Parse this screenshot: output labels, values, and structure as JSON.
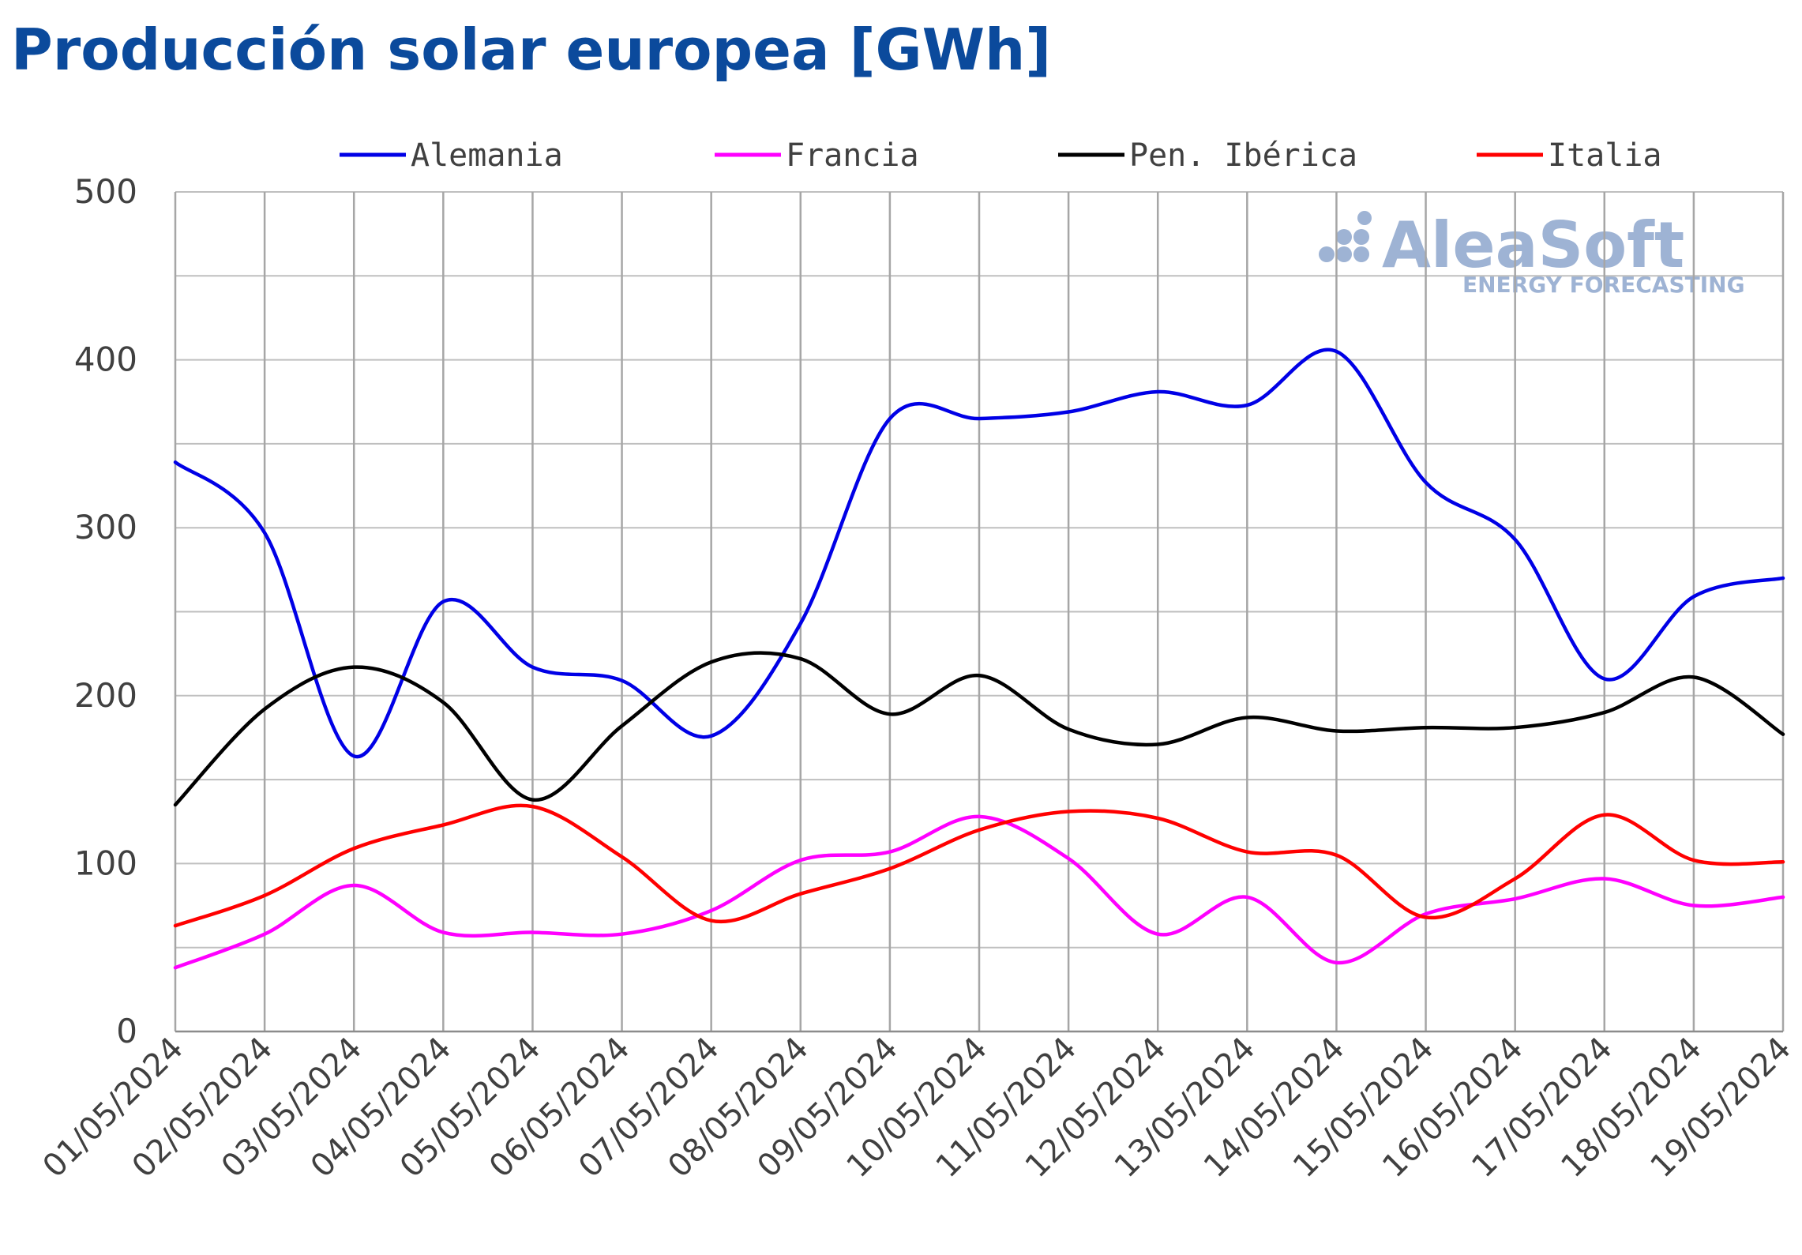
{
  "chart_data": {
    "type": "line",
    "title": "Producción solar europea [GWh]",
    "xlabel": "",
    "ylabel": "",
    "x": [
      "01/05/2024",
      "02/05/2024",
      "03/05/2024",
      "04/05/2024",
      "05/05/2024",
      "06/05/2024",
      "07/05/2024",
      "08/05/2024",
      "09/05/2024",
      "10/05/2024",
      "11/05/2024",
      "12/05/2024",
      "13/05/2024",
      "14/05/2024",
      "15/05/2024",
      "16/05/2024",
      "17/05/2024",
      "18/05/2024",
      "19/05/2024"
    ],
    "ylim": [
      0,
      500
    ],
    "yticks": [
      0,
      100,
      200,
      300,
      400,
      500
    ],
    "grid": true,
    "legend_position": "top",
    "series": [
      {
        "name": "Alemania",
        "color": "#0000e6",
        "values": [
          339,
          297,
          164,
          256,
          217,
          209,
          176,
          243,
          365,
          365,
          369,
          381,
          373,
          405,
          327,
          293,
          210,
          259,
          270
        ]
      },
      {
        "name": "Francia",
        "color": "#ff00ff",
        "values": [
          38,
          58,
          87,
          59,
          59,
          58,
          72,
          102,
          107,
          128,
          103,
          58,
          80,
          41,
          70,
          79,
          91,
          75,
          80
        ]
      },
      {
        "name": "Pen. Ibérica",
        "color": "#000000",
        "values": [
          135,
          192,
          217,
          196,
          138,
          182,
          220,
          222,
          189,
          212,
          180,
          171,
          187,
          179,
          181,
          181,
          190,
          211,
          177
        ]
      },
      {
        "name": "Italia",
        "color": "#ff0000",
        "values": [
          63,
          81,
          109,
          123,
          134,
          104,
          66,
          82,
          97,
          120,
          131,
          127,
          107,
          105,
          68,
          91,
          129,
          102,
          101
        ]
      }
    ]
  },
  "watermark": {
    "brand": "AleaSoft",
    "tagline": "ENERGY FORECASTING",
    "color": "#9eb3d4"
  }
}
